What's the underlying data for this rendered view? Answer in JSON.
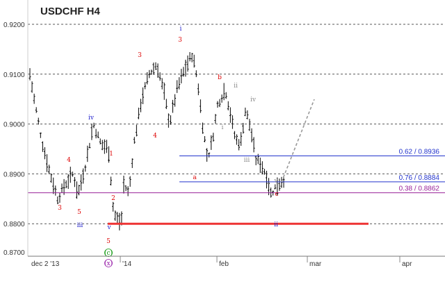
{
  "chart_data": {
    "type": "ohlc",
    "title": "USDCHF H4",
    "ylim": [
      0.87,
      0.925
    ],
    "yticks": [
      "0.8700",
      "0.8800",
      "0.8900",
      "0.9000",
      "0.9100",
      "0.9200"
    ],
    "xticks": [
      "dec 2 '13",
      "'14",
      "feb",
      "mar",
      "apr"
    ],
    "grid": "horizontal-dashed",
    "colors": {
      "bars": "#000000",
      "wave_red": "#dd0000",
      "wave_blue": "#1a1acc",
      "wave_gray": "#888888",
      "wave_green": "#119911",
      "wave_purple": "#9922aa",
      "level_blue": "#2233cc",
      "level_purple": "#992299",
      "target_red": "#ee3333",
      "projection": "#999999"
    },
    "wave_path": [
      [
        0.0,
        0.91
      ],
      [
        0.02,
        0.904
      ],
      [
        0.05,
        0.896
      ],
      [
        0.08,
        0.89
      ],
      [
        0.11,
        0.885
      ],
      [
        0.14,
        0.888
      ],
      [
        0.17,
        0.89
      ],
      [
        0.19,
        0.886
      ],
      [
        0.22,
        0.892
      ],
      [
        0.25,
        0.9
      ],
      [
        0.28,
        0.896
      ],
      [
        0.31,
        0.895
      ],
      [
        0.33,
        0.882
      ],
      [
        0.36,
        0.88
      ],
      [
        0.37,
        0.888
      ],
      [
        0.39,
        0.886
      ],
      [
        0.41,
        0.896
      ],
      [
        0.44,
        0.905
      ],
      [
        0.47,
        0.91
      ],
      [
        0.5,
        0.912
      ],
      [
        0.53,
        0.906
      ],
      [
        0.55,
        0.9
      ],
      [
        0.58,
        0.907
      ],
      [
        0.61,
        0.911
      ],
      [
        0.64,
        0.914
      ],
      [
        0.66,
        0.909
      ],
      [
        0.68,
        0.9
      ],
      [
        0.7,
        0.893
      ],
      [
        0.72,
        0.897
      ],
      [
        0.74,
        0.904
      ],
      [
        0.77,
        0.907
      ],
      [
        0.79,
        0.902
      ],
      [
        0.81,
        0.897
      ],
      [
        0.83,
        0.896
      ],
      [
        0.85,
        0.903
      ],
      [
        0.87,
        0.899
      ],
      [
        0.89,
        0.893
      ],
      [
        0.91,
        0.892
      ],
      [
        0.93,
        0.89
      ],
      [
        0.95,
        0.886
      ],
      [
        0.97,
        0.8875
      ],
      [
        1.0,
        0.889
      ]
    ],
    "levels": [
      {
        "label": "0.62 / 0.8936",
        "value": 0.8936,
        "color": "#2233cc"
      },
      {
        "label": "0.76 / 0.8884",
        "value": 0.8884,
        "color": "#2233cc"
      },
      {
        "label": "0.38 / 0.8862",
        "value": 0.8862,
        "color": "#992299"
      }
    ],
    "target_line": {
      "value": 0.88,
      "color": "#ee3333"
    },
    "wave_labels": [
      {
        "text": "i",
        "color": "#1a1acc"
      },
      {
        "text": "3",
        "color": "#dd0000"
      },
      {
        "text": "3",
        "color": "#dd0000"
      },
      {
        "text": "b",
        "color": "#dd0000"
      },
      {
        "text": "ii",
        "color": "#888888"
      },
      {
        "text": "iv",
        "color": "#1a1acc"
      },
      {
        "text": "iv",
        "color": "#888888"
      },
      {
        "text": "4",
        "color": "#dd0000"
      },
      {
        "text": "4",
        "color": "#dd0000"
      },
      {
        "text": "i",
        "color": "#888888"
      },
      {
        "text": "1",
        "color": "#dd0000"
      },
      {
        "text": "iii",
        "color": "#888888"
      },
      {
        "text": "a",
        "color": "#dd0000"
      },
      {
        "text": "3",
        "color": "#dd0000"
      },
      {
        "text": "5",
        "color": "#dd0000"
      },
      {
        "text": "2",
        "color": "#dd0000"
      },
      {
        "text": "v",
        "color": "#888888"
      },
      {
        "text": "c",
        "color": "#dd0000"
      },
      {
        "text": "iii",
        "color": "#1a1acc"
      },
      {
        "text": "v",
        "color": "#1a1acc"
      },
      {
        "text": "ii",
        "color": "#1a1acc"
      },
      {
        "text": "5",
        "color": "#dd0000"
      },
      {
        "text": "(c)",
        "color": "#119911"
      },
      {
        "text": "(x)",
        "color": "#9922aa"
      }
    ]
  }
}
